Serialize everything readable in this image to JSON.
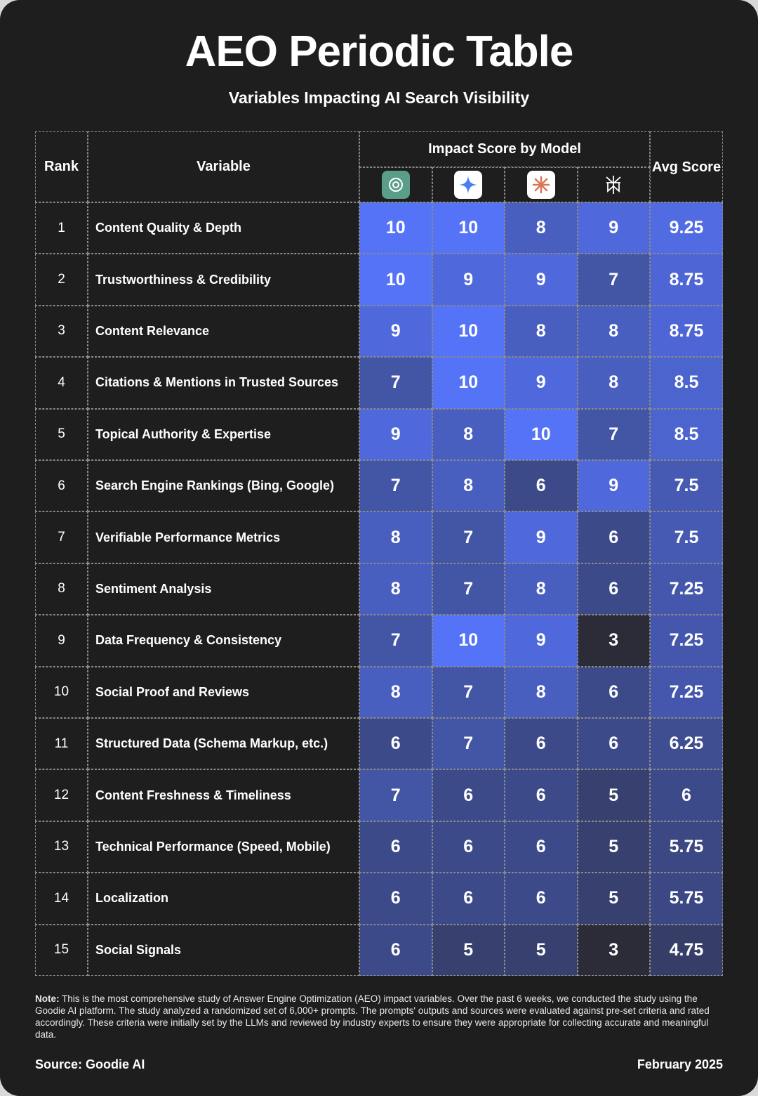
{
  "header": {
    "title": "AEO Periodic Table",
    "subtitle": "Variables Impacting AI Search Visibility"
  },
  "table": {
    "headers": {
      "rank": "Rank",
      "variable": "Variable",
      "models": "Impact Score by Model",
      "avg": "Avg Score"
    },
    "rows": [
      [
        1,
        "Content Quality & Depth",
        10,
        10,
        8,
        9,
        9.25
      ],
      [
        2,
        "Trustworthiness & Credibility",
        10,
        9,
        9,
        7,
        8.75
      ],
      [
        3,
        "Content Relevance",
        9,
        10,
        8,
        8,
        8.75
      ],
      [
        4,
        "Citations & Mentions in Trusted Sources",
        7,
        10,
        9,
        8,
        8.5
      ],
      [
        5,
        "Topical Authority & Expertise",
        9,
        8,
        10,
        7,
        8.5
      ],
      [
        6,
        "Search Engine Rankings (Bing, Google)",
        7,
        8,
        6,
        9,
        7.5
      ],
      [
        7,
        "Verifiable Performance Metrics",
        8,
        7,
        9,
        6,
        7.5
      ],
      [
        8,
        "Sentiment Analysis",
        8,
        7,
        8,
        6,
        7.25
      ],
      [
        9,
        "Data Frequency & Consistency",
        7,
        10,
        9,
        3,
        7.25
      ],
      [
        10,
        "Social Proof and Reviews",
        8,
        7,
        8,
        6,
        7.25
      ],
      [
        11,
        "Structured Data (Schema Markup, etc.)",
        6,
        7,
        6,
        6,
        6.25
      ],
      [
        12,
        "Content Freshness & Timeliness",
        7,
        6,
        6,
        5,
        6
      ],
      [
        13,
        "Technical Performance (Speed, Mobile)",
        6,
        6,
        6,
        5,
        5.75
      ],
      [
        14,
        "Localization",
        6,
        6,
        6,
        5,
        5.75
      ],
      [
        15,
        "Social Signals",
        6,
        5,
        5,
        3,
        4.75
      ]
    ],
    "colors": {
      "low": "#2b2c38",
      "high": "#5573f7"
    }
  },
  "note": {
    "label": "Note:",
    "text": "This is the most comprehensive study of Answer Engine Optimization (AEO) impact variables. Over the past 6 weeks, we conducted the study using the Goodie AI platform. The study analyzed a randomized set of 6,000+ prompts. The prompts' outputs and sources were evaluated against pre-set criteria and rated accordingly. These criteria were initially set by the LLMs and reviewed by industry experts to ensure they were appropriate for collecting accurate and meaningful data."
  },
  "footer": {
    "source": "Source: Goodie AI",
    "date": "February 2025"
  }
}
